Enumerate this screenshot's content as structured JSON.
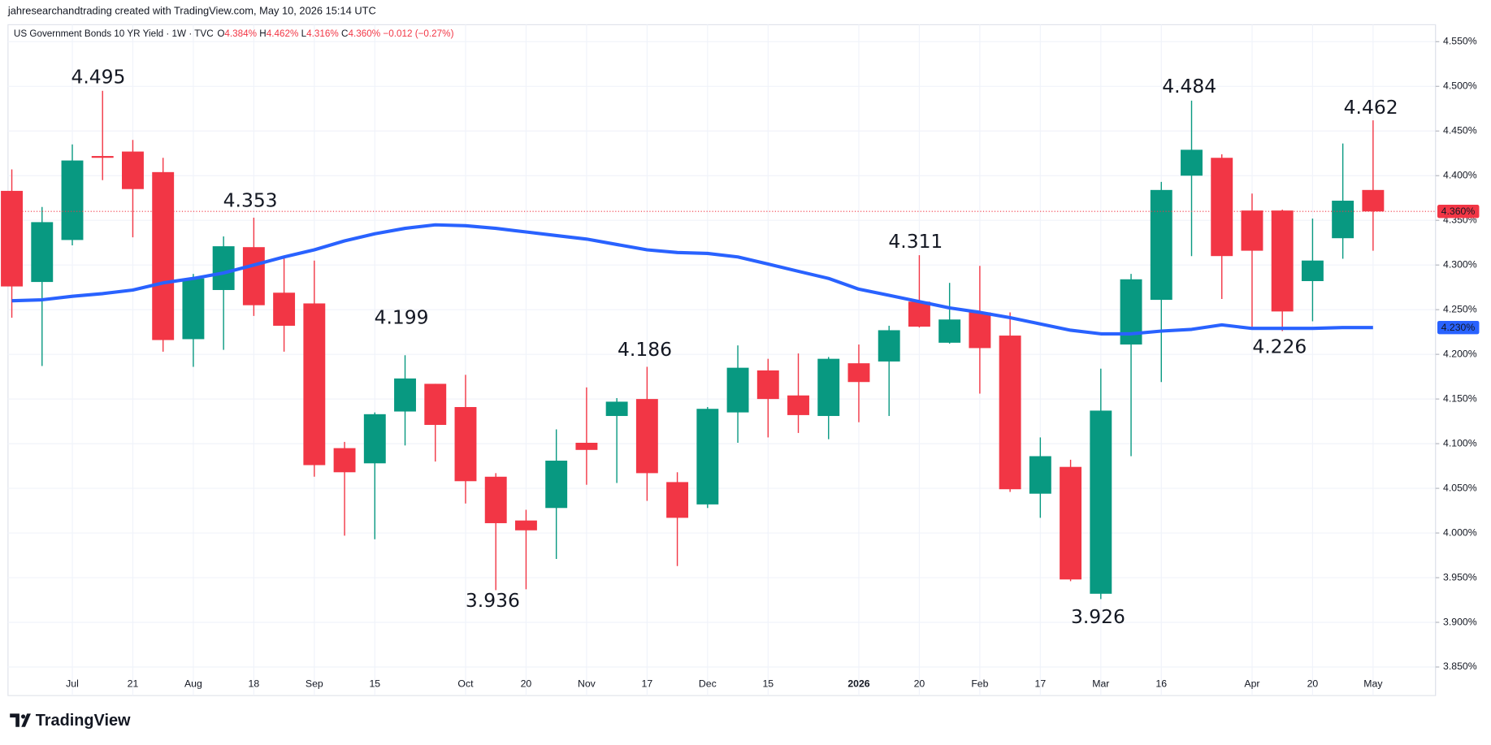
{
  "header": "jahresearchandtrading created with TradingView.com, May 10, 2026 15:14 UTC",
  "footer": "TradingView",
  "chart_data": {
    "type": "candlestick",
    "title": "US Government Bonds 10 YR Yield · 1W · TVC",
    "legend": {
      "o_key": "O",
      "o": "4.384%",
      "h_key": "H",
      "h": "4.462%",
      "l_key": "L",
      "l": "4.316%",
      "c_key": "C",
      "c": "4.360%",
      "change": "−0.012 (−0.27%)"
    },
    "categories": [
      null,
      null,
      "Jul",
      null,
      "21",
      null,
      "Aug",
      null,
      "18",
      null,
      "Sep",
      null,
      "15",
      null,
      null,
      "Oct",
      null,
      "20",
      null,
      "Nov",
      null,
      "17",
      null,
      "Dec",
      null,
      "15",
      null,
      null,
      "2026",
      null,
      "20",
      null,
      "Feb",
      null,
      "17",
      null,
      "Mar",
      null,
      "16",
      null,
      null,
      "Apr",
      null,
      "20",
      null,
      "May"
    ],
    "open": [
      4.383,
      4.281,
      4.328,
      4.422,
      4.427,
      4.404,
      4.217,
      4.272,
      4.32,
      4.269,
      4.257,
      4.095,
      4.078,
      4.136,
      4.167,
      4.141,
      4.063,
      4.014,
      4.028,
      4.101,
      4.131,
      4.15,
      4.057,
      4.032,
      4.135,
      4.182,
      4.154,
      4.131,
      4.19,
      4.192,
      4.259,
      4.213,
      4.247,
      4.221,
      4.044,
      4.074,
      3.932,
      4.211,
      4.261,
      4.4,
      4.42,
      4.361,
      4.361,
      4.282,
      4.33,
      4.384
    ],
    "high": [
      4.407,
      4.365,
      4.435,
      4.495,
      4.44,
      4.42,
      4.29,
      4.332,
      4.353,
      4.31,
      4.305,
      4.102,
      4.135,
      4.199,
      4.167,
      4.177,
      4.067,
      4.026,
      4.116,
      4.163,
      4.151,
      4.186,
      4.068,
      4.141,
      4.21,
      4.195,
      4.201,
      4.197,
      4.211,
      4.232,
      4.311,
      4.28,
      4.299,
      4.247,
      4.107,
      4.082,
      4.184,
      4.29,
      4.393,
      4.484,
      4.424,
      4.38,
      4.362,
      4.352,
      4.436,
      4.462
    ],
    "low": [
      4.241,
      4.187,
      4.322,
      4.395,
      4.331,
      4.203,
      4.186,
      4.205,
      4.243,
      4.203,
      4.063,
      3.997,
      3.993,
      4.098,
      4.08,
      4.033,
      3.936,
      3.937,
      3.971,
      4.054,
      4.056,
      4.036,
      3.963,
      4.028,
      4.101,
      4.107,
      4.112,
      4.105,
      4.124,
      4.131,
      4.23,
      4.212,
      4.156,
      4.046,
      4.017,
      3.946,
      3.926,
      4.086,
      4.169,
      4.31,
      4.262,
      4.229,
      4.226,
      4.237,
      4.307,
      4.316
    ],
    "close": [
      4.276,
      4.348,
      4.417,
      4.42,
      4.385,
      4.216,
      4.285,
      4.321,
      4.255,
      4.232,
      4.076,
      4.068,
      4.133,
      4.173,
      4.121,
      4.058,
      4.011,
      4.003,
      4.081,
      4.093,
      4.147,
      4.067,
      4.017,
      4.139,
      4.185,
      4.15,
      4.132,
      4.195,
      4.169,
      4.227,
      4.231,
      4.239,
      4.207,
      4.049,
      4.086,
      3.948,
      4.137,
      4.284,
      4.384,
      4.429,
      4.31,
      4.316,
      4.248,
      4.305,
      4.372,
      4.36
    ],
    "up_color": "#089981",
    "down_color": "#f23645",
    "moving_average": {
      "color": "#2962ff",
      "label": "4.230%",
      "values": [
        4.26,
        4.261,
        4.265,
        4.268,
        4.272,
        4.28,
        4.285,
        4.291,
        4.3,
        4.309,
        4.317,
        4.327,
        4.335,
        4.341,
        4.345,
        4.344,
        4.341,
        4.337,
        4.333,
        4.329,
        4.323,
        4.317,
        4.314,
        4.313,
        4.309,
        4.301,
        4.293,
        4.285,
        4.273,
        4.266,
        4.259,
        4.252,
        4.247,
        4.241,
        4.234,
        4.227,
        4.223,
        4.223,
        4.226,
        4.228,
        4.233,
        4.229,
        4.229,
        4.229,
        4.23,
        4.23
      ]
    },
    "last_price_label": "4.360%",
    "annotations": [
      "4.495",
      "4.353",
      "4.199",
      "3.936",
      "4.186",
      "4.311",
      "3.926",
      "4.484",
      "4.226",
      "4.462"
    ],
    "ylim": [
      3.818,
      4.569
    ],
    "yticks": [
      {
        "value": 3.85,
        "label": "3.850%"
      },
      {
        "value": 3.9,
        "label": "3.900%"
      },
      {
        "value": 3.95,
        "label": "3.950%"
      },
      {
        "value": 4.0,
        "label": "4.000%"
      },
      {
        "value": 4.05,
        "label": "4.050%"
      },
      {
        "value": 4.1,
        "label": "4.100%"
      },
      {
        "value": 4.15,
        "label": "4.150%"
      },
      {
        "value": 4.2,
        "label": "4.200%"
      },
      {
        "value": 4.25,
        "label": "4.250%"
      },
      {
        "value": 4.3,
        "label": "4.300%"
      },
      {
        "value": 4.35,
        "label": "4.350%"
      },
      {
        "value": 4.4,
        "label": "4.400%"
      },
      {
        "value": 4.45,
        "label": "4.450%"
      },
      {
        "value": 4.5,
        "label": "4.500%"
      },
      {
        "value": 4.55,
        "label": "4.550%"
      }
    ],
    "grid": true
  }
}
